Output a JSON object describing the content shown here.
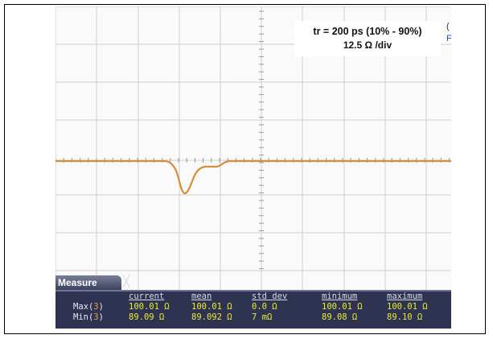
{
  "annotation": {
    "line1": "tr = 200 ps (10% - 90%)",
    "line2": "12.5 Ω /div"
  },
  "clipped_edge_text": [
    "(",
    "F"
  ],
  "colors": {
    "trace": "#d98c3a",
    "grid": "#cfcfcf",
    "panel_bg": "#2f3352",
    "value_text": "#e8ec30",
    "channel_tag": "#f0a040"
  },
  "measure": {
    "tab_label": "Measure",
    "close_glyph": "╳",
    "columns": [
      "current",
      "mean",
      "std dev",
      "minimum",
      "maximum"
    ],
    "rows": [
      {
        "label": "Max(",
        "channel": "3",
        "label_end": ")",
        "values": [
          "100.01 Ω",
          "100.01 Ω",
          "0.0 Ω",
          "100.01 Ω",
          "100.01 Ω"
        ]
      },
      {
        "label": "Min(",
        "channel": "3",
        "label_end": ")",
        "values": [
          "89.09 Ω",
          "89.092 Ω",
          "7 mΩ",
          "89.08 Ω",
          "89.10 Ω"
        ]
      }
    ]
  }
}
